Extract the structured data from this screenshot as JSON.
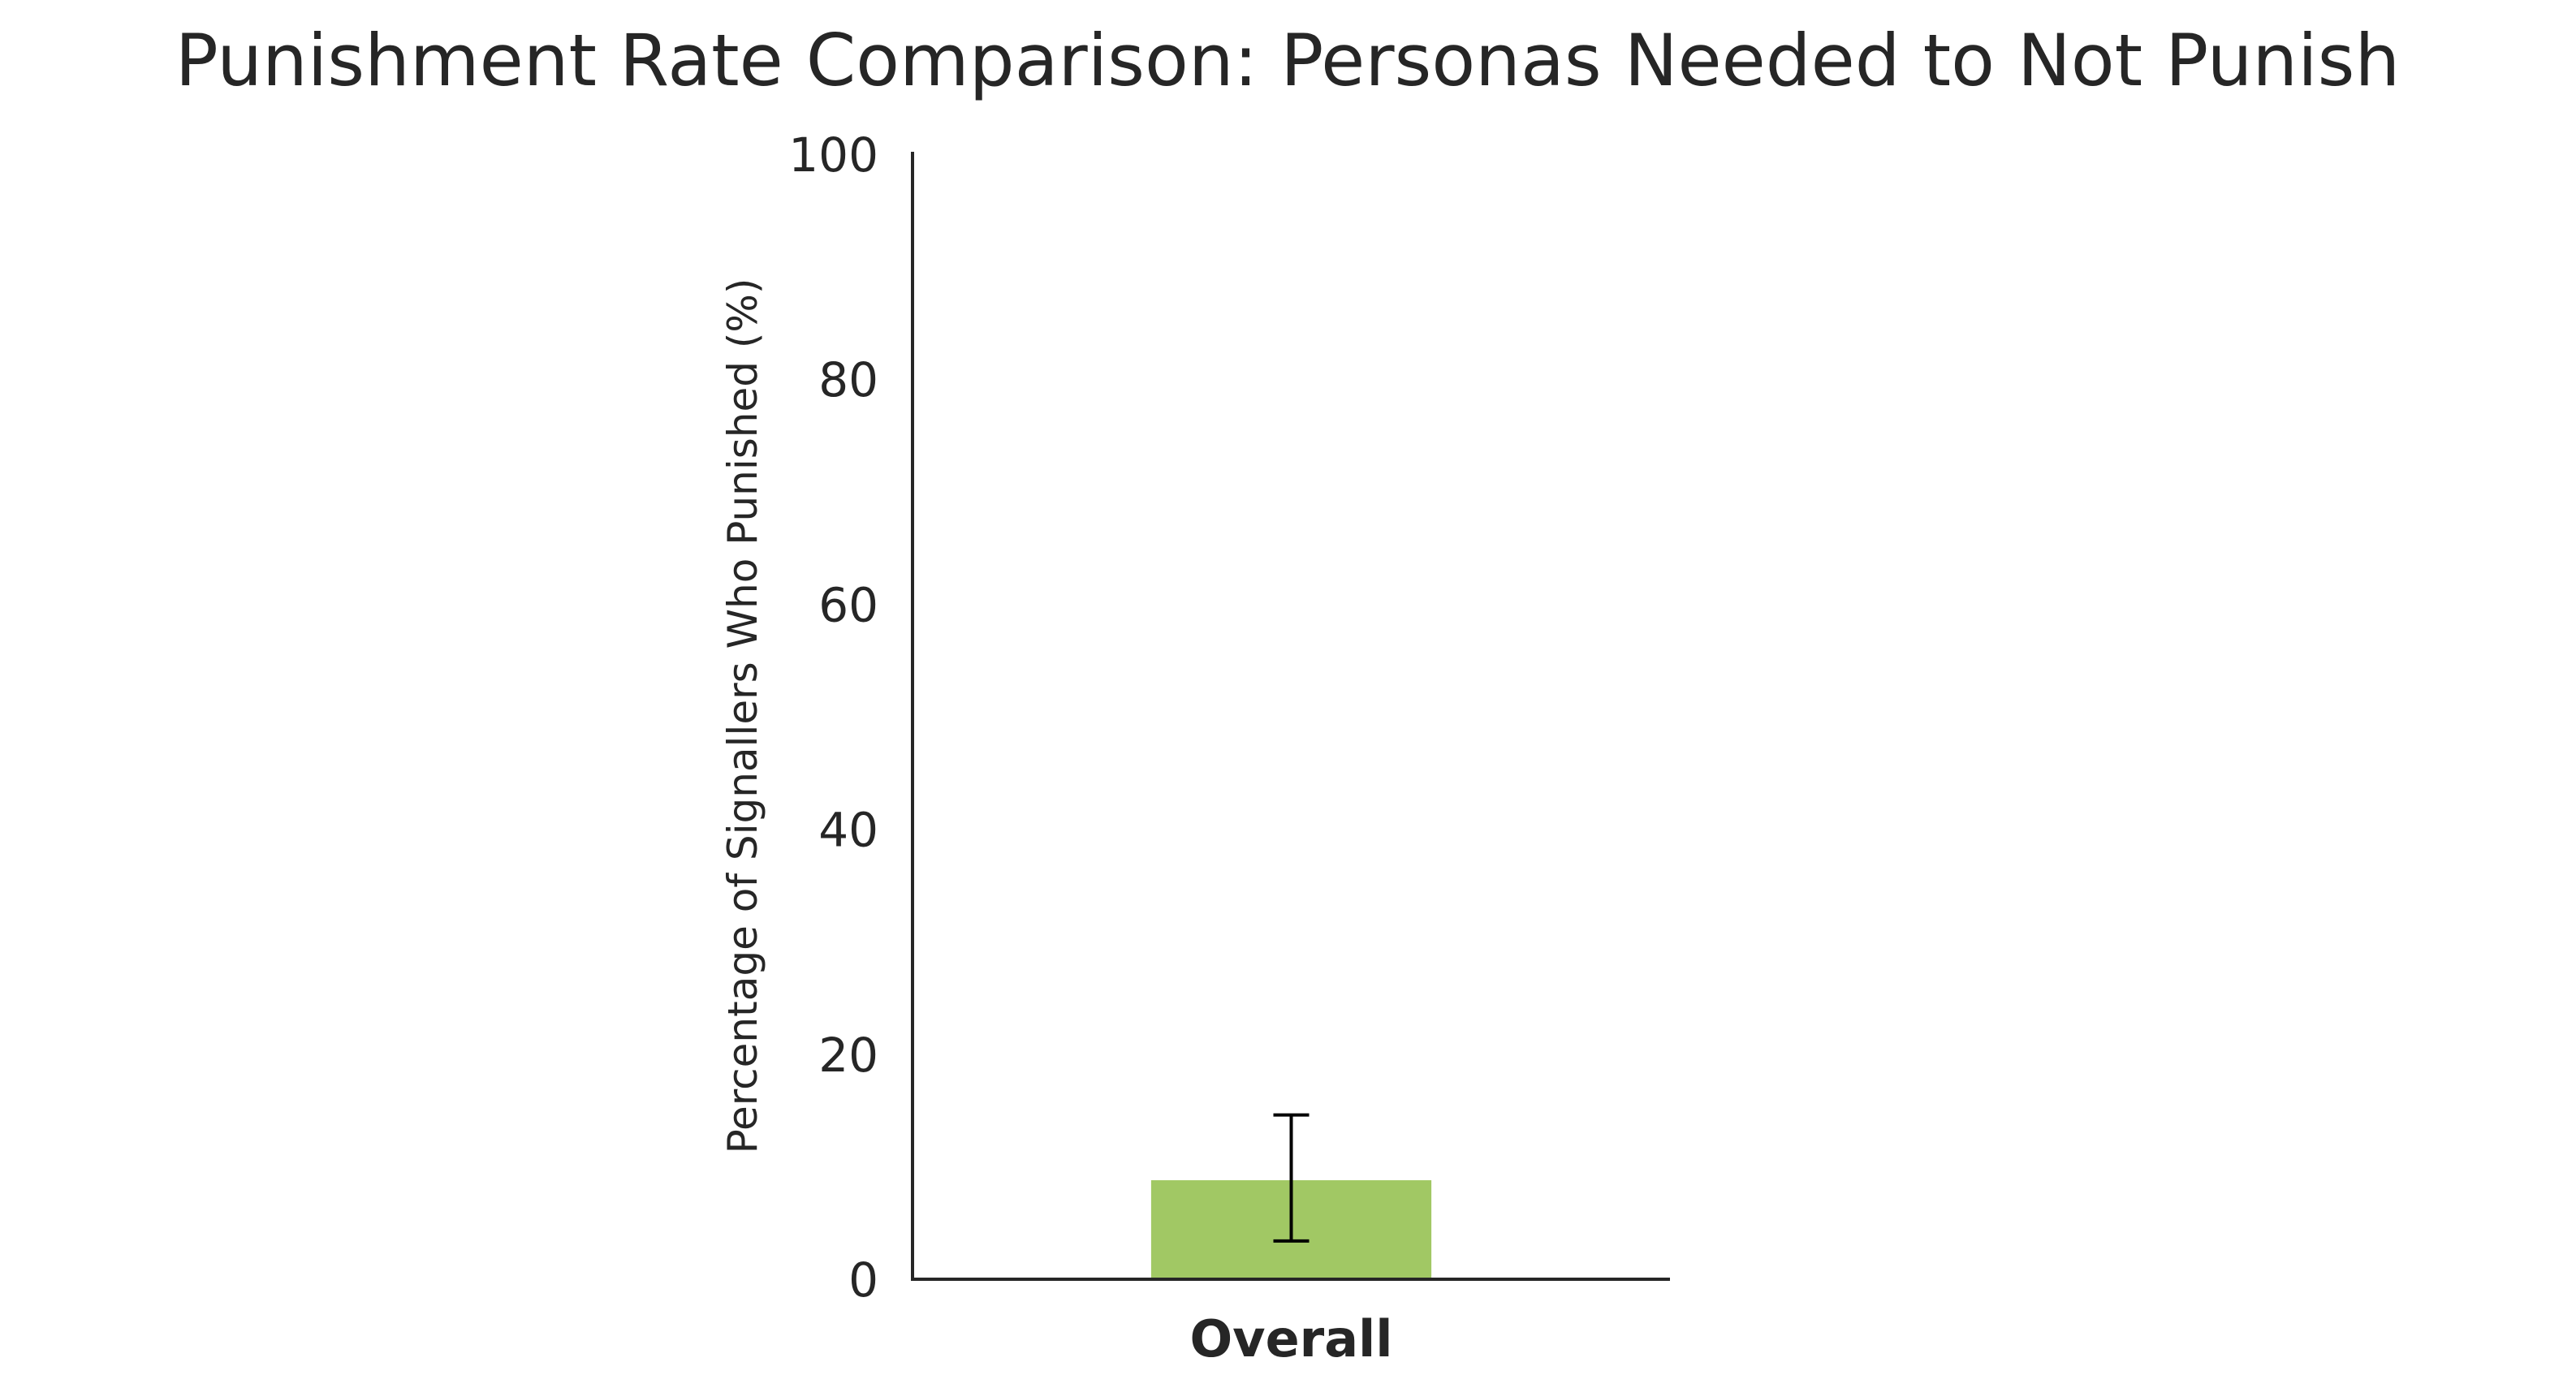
{
  "chart_data": {
    "type": "bar",
    "title": "Punishment Rate Comparison: Personas Needed to Not Punish",
    "xlabel": "",
    "ylabel": "Percentage of Signallers Who Punished (%)",
    "categories": [
      "Overall"
    ],
    "values": [
      8.8
    ],
    "error_low": [
      3.4
    ],
    "error_high": [
      14.6
    ],
    "ylim": [
      0,
      100
    ],
    "yticks": [
      "0",
      "20",
      "40",
      "60",
      "80",
      "100"
    ],
    "grid": false,
    "legend": "none",
    "colors": {
      "bar": "#a1c864",
      "error_bar": "#000000",
      "axis": "#262626"
    }
  }
}
